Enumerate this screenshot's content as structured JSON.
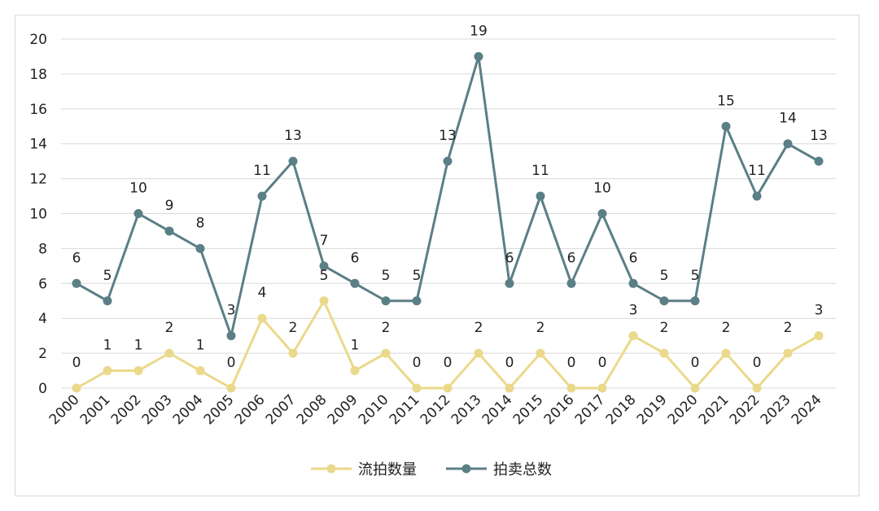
{
  "chart_data": {
    "type": "line",
    "title": "",
    "xlabel": "",
    "ylabel": "",
    "ylim": [
      0,
      20
    ],
    "yticks": [
      "0",
      "2",
      "4",
      "6",
      "8",
      "10",
      "12",
      "14",
      "16",
      "18",
      "20"
    ],
    "grid": true,
    "legend_position": "bottom",
    "categories": [
      "2000",
      "2001",
      "2002",
      "2003",
      "2004",
      "2005",
      "2006",
      "2007",
      "2008",
      "2009",
      "2010",
      "2011",
      "2012",
      "2013",
      "2014",
      "2015",
      "2016",
      "2017",
      "2018",
      "2019",
      "2020",
      "2021",
      "2022",
      "2023",
      "2024"
    ],
    "series": [
      {
        "name": "流拍数量",
        "color": "#EAD98A",
        "values": [
          0,
          1,
          1,
          2,
          1,
          0,
          4,
          2,
          5,
          1,
          2,
          0,
          0,
          2,
          0,
          2,
          0,
          0,
          3,
          2,
          0,
          2,
          0,
          2,
          3
        ]
      },
      {
        "name": "拍卖总数",
        "color": "#5B7F86",
        "values": [
          6,
          5,
          10,
          9,
          8,
          3,
          11,
          13,
          7,
          6,
          5,
          5,
          13,
          19,
          6,
          11,
          6,
          10,
          6,
          5,
          5,
          15,
          11,
          14,
          13
        ]
      }
    ]
  }
}
